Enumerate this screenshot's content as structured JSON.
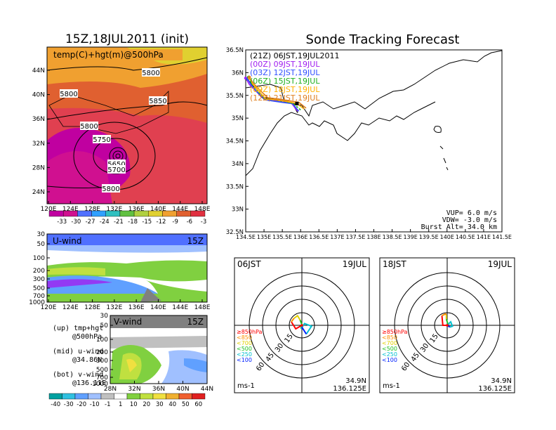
{
  "colors": {
    "frame": "#000000",
    "traj_21z": "#000000",
    "traj_00z": "#a020f0",
    "traj_03z": "#3050ff",
    "traj_06z": "#20b020",
    "traj_09z": "#ffb000",
    "traj_12z": "#e08020"
  },
  "left": {
    "title": "15Z,18JUL2011 (init)",
    "map_label": "temp(C)+hgt(m)@500hPa",
    "temp_colorbar": [
      {
        "label": "-33",
        "color": "#c000a0"
      },
      {
        "label": "-30",
        "color": "#d01090"
      },
      {
        "label": "-27",
        "color": "#5070ff"
      },
      {
        "label": "-24",
        "color": "#30a0ff"
      },
      {
        "label": "-21",
        "color": "#30c0c0"
      },
      {
        "label": "-18",
        "color": "#60c040"
      },
      {
        "label": "-15",
        "color": "#b0d040"
      },
      {
        "label": "-12",
        "color": "#e0d030"
      },
      {
        "label": "-9",
        "color": "#f0a030"
      },
      {
        "label": "-6",
        "color": "#e06030"
      },
      {
        "label": "-3",
        "color": "#e03040"
      }
    ],
    "map_yticks": [
      "44N",
      "40N",
      "36N",
      "32N",
      "28N",
      "24N"
    ],
    "map_xticks": [
      "120E",
      "124E",
      "128E",
      "132E",
      "136E",
      "140E",
      "144E",
      "148E"
    ],
    "contour_labels": [
      "5800",
      "5800",
      "5850",
      "5800",
      "5750",
      "5650",
      "5700",
      "5800"
    ],
    "uwind_title": "U-wind",
    "uwind_time": "15Z",
    "uwind_yticks": [
      "30",
      "50",
      "100",
      "200",
      "300",
      "500",
      "700",
      "1000"
    ],
    "uwind_xticks": [
      "120E",
      "124E",
      "128E",
      "132E",
      "136E",
      "140E",
      "144E",
      "148E"
    ],
    "vwind_title": "V-wind",
    "vwind_time": "15Z",
    "vwind_yticks": [
      "30",
      "50",
      "100",
      "200",
      "300",
      "500",
      "700",
      "1000"
    ],
    "vwind_xticks": [
      "28N",
      "32N",
      "36N",
      "40N",
      "44N"
    ],
    "notes": [
      {
        "a": "(up)  tmp+hgt",
        "b": "@500hPa"
      },
      {
        "a": "(mid)  u-wind",
        "b": "@34.86N"
      },
      {
        "a": "(bot)  v-wind",
        "b": "@136.11E"
      }
    ],
    "wind_colorbar": [
      {
        "label": "-40",
        "color": "#00a0a0"
      },
      {
        "label": "-30",
        "color": "#30c0e0"
      },
      {
        "label": "-20",
        "color": "#60a0ff"
      },
      {
        "label": "-10",
        "color": "#a0c0ff"
      },
      {
        "label": "-1",
        "color": "#c0c0c0"
      },
      {
        "label": "1",
        "color": "#ffffff"
      },
      {
        "label": "10",
        "color": "#80d040"
      },
      {
        "label": "20",
        "color": "#c0e040"
      },
      {
        "label": "30",
        "color": "#f0e040"
      },
      {
        "label": "40",
        "color": "#f0b030"
      },
      {
        "label": "50",
        "color": "#f06030"
      },
      {
        "label": "60",
        "color": "#e02020"
      }
    ]
  },
  "right": {
    "title": "Sonde Tracking Forecast",
    "legend": [
      {
        "text": "(21Z) 06JST,19JUL2011",
        "color": "#000000"
      },
      {
        "text": "(00Z) 09JST,19JUL",
        "color": "#a020f0"
      },
      {
        "text": "(03Z) 12JST,19JUL",
        "color": "#3050ff"
      },
      {
        "text": "(06Z) 15JST,19JUL",
        "color": "#20b020"
      },
      {
        "text": "(09Z) 18JST,19JUL",
        "color": "#ffb000"
      },
      {
        "text": "(12Z) 21JST,19JUL",
        "color": "#e08020"
      }
    ],
    "map_yticks": [
      "36.5N",
      "36N",
      "35.5N",
      "35N",
      "34.5N",
      "34N",
      "33.5N",
      "33N",
      "32.5N"
    ],
    "map_xticks": [
      "134.5E",
      "135E",
      "135.5E",
      "136E",
      "136.5E",
      "137E",
      "137.5E",
      "138E",
      "138.5E",
      "139E",
      "139.5E",
      "140E",
      "140.5E",
      "141E",
      "141.5E"
    ],
    "params": [
      "VUP= 6.0 m/s",
      "VDW= -3.0 m/s",
      "Burst Alt= 34.0 km"
    ],
    "hodo_left": {
      "time": "06JST",
      "date": "19JUL",
      "unit": "ms-1",
      "lat": "34.9N",
      "lon": "136.125E",
      "rings": [
        "15",
        "30",
        "45",
        "60"
      ]
    },
    "hodo_right": {
      "time": "18JST",
      "date": "19JUL",
      "unit": "ms-1",
      "lat": "34.9N",
      "lon": "136.125E",
      "rings": [
        "15",
        "30",
        "45",
        "60"
      ]
    },
    "hodo_legend": [
      {
        "text": "≥850hPa",
        "color": "#ff0000"
      },
      {
        "text": "<850",
        "color": "#ff9000"
      },
      {
        "text": "<700",
        "color": "#e0d000"
      },
      {
        "text": "<500",
        "color": "#20c020"
      },
      {
        "text": "<250",
        "color": "#00c0d0"
      },
      {
        "text": "<100",
        "color": "#0020ff"
      }
    ]
  },
  "chart_data": [
    {
      "type": "line",
      "title": "Sonde Tracking Forecast",
      "xlabel": "",
      "ylabel": "",
      "xlim": [
        134.5,
        141.5
      ],
      "ylim": [
        32.5,
        36.5
      ],
      "series": [
        {
          "name": "(21Z) 06JST,19JUL2011",
          "x": [
            135.92,
            135.8,
            135.6,
            135.4,
            134.95,
            134.78,
            134.66,
            134.55
          ],
          "y": [
            35.12,
            35.3,
            35.38,
            35.42,
            35.45,
            35.6,
            35.75,
            35.85
          ]
        },
        {
          "name": "(00Z) 09JST,19JUL",
          "x": [
            135.92,
            135.75,
            135.55,
            135.3,
            135.0,
            134.8,
            134.6,
            134.5
          ],
          "y": [
            35.15,
            35.33,
            35.35,
            35.38,
            35.42,
            35.58,
            35.74,
            35.88
          ]
        },
        {
          "name": "(03Z) 12JST,19JUL",
          "x": [
            135.95,
            135.78,
            135.55,
            135.3,
            135.05,
            134.82,
            134.65,
            134.55
          ],
          "y": [
            35.15,
            35.32,
            35.34,
            35.37,
            35.4,
            35.57,
            35.73,
            35.86
          ]
        },
        {
          "name": "(06Z) 15JST,19JUL",
          "x": [
            136.0,
            135.8,
            135.6,
            135.3,
            135.0,
            134.8,
            134.65,
            134.58
          ],
          "y": [
            35.18,
            35.32,
            35.36,
            35.4,
            35.43,
            35.62,
            35.78,
            35.9
          ]
        },
        {
          "name": "(09Z) 18JST,19JUL",
          "x": [
            136.1,
            135.9,
            135.6,
            135.35,
            135.05,
            134.85,
            134.68,
            134.6
          ],
          "y": [
            35.2,
            35.32,
            35.37,
            35.4,
            35.42,
            35.6,
            35.76,
            35.88
          ]
        },
        {
          "name": "(12Z) 21JST,19JUL",
          "x": [
            136.15,
            135.95,
            135.7,
            135.4,
            135.1,
            134.88,
            134.7,
            134.6
          ],
          "y": [
            35.22,
            35.35,
            35.38,
            35.42,
            35.45,
            35.62,
            35.78,
            35.9
          ]
        }
      ]
    },
    {
      "type": "line",
      "title": "06JST 19JUL",
      "xlabel": "",
      "ylabel": "ms-1",
      "series": [
        {
          "name": "≥850hPa",
          "x": [
            0,
            -7,
            -12
          ],
          "y": [
            0,
            -4,
            4
          ]
        },
        {
          "name": "<850",
          "x": [
            -12,
            -9
          ],
          "y": [
            4,
            8
          ]
        },
        {
          "name": "<700",
          "x": [
            -9,
            -5,
            -2
          ],
          "y": [
            8,
            11,
            6
          ]
        },
        {
          "name": "<500",
          "x": [
            -2,
            0,
            -1
          ],
          "y": [
            6,
            1,
            -4
          ]
        },
        {
          "name": "<250",
          "x": [
            -1,
            3,
            11,
            5
          ],
          "y": [
            -4,
            2,
            -1,
            -10
          ]
        },
        {
          "name": "<100",
          "x": [
            5,
            0
          ],
          "y": [
            -10,
            -2
          ]
        }
      ]
    },
    {
      "type": "line",
      "title": "18JST 19JUL",
      "xlabel": "",
      "ylabel": "ms-1",
      "series": [
        {
          "name": "≥850hPa",
          "x": [
            0,
            -5,
            -6
          ],
          "y": [
            0,
            0,
            11
          ]
        },
        {
          "name": "<850",
          "x": [
            -6,
            -2,
            -1
          ],
          "y": [
            11,
            13,
            12
          ]
        },
        {
          "name": "<700",
          "x": [
            -1,
            -1
          ],
          "y": [
            12,
            7
          ]
        },
        {
          "name": "<500",
          "x": [
            -1,
            0,
            1
          ],
          "y": [
            7,
            4,
            1
          ]
        },
        {
          "name": "<250",
          "x": [
            1,
            4,
            6,
            3
          ],
          "y": [
            1,
            4,
            -1,
            -2
          ]
        },
        {
          "name": "<100",
          "x": [
            3,
            0
          ],
          "y": [
            -2,
            0
          ]
        }
      ]
    }
  ]
}
